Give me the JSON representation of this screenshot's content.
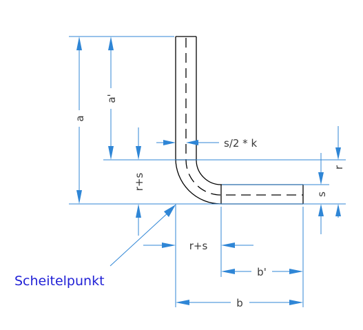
{
  "diagram": {
    "labels": {
      "a": "a",
      "a_prime": "a'",
      "r_plus_s_vertical": "r+s",
      "s_half_k": "s/2 * k",
      "r": "r",
      "s": "s",
      "r_plus_s_horizontal": "r+s",
      "b_prime": "b'",
      "b": "b",
      "vertex": "Scheitelpunkt"
    },
    "colors": {
      "dimension_lines": "#2f86d6",
      "part_outline": "#000000",
      "vertex_label": "#1f1fd6",
      "dimension_text": "#3a3a3a"
    }
  }
}
